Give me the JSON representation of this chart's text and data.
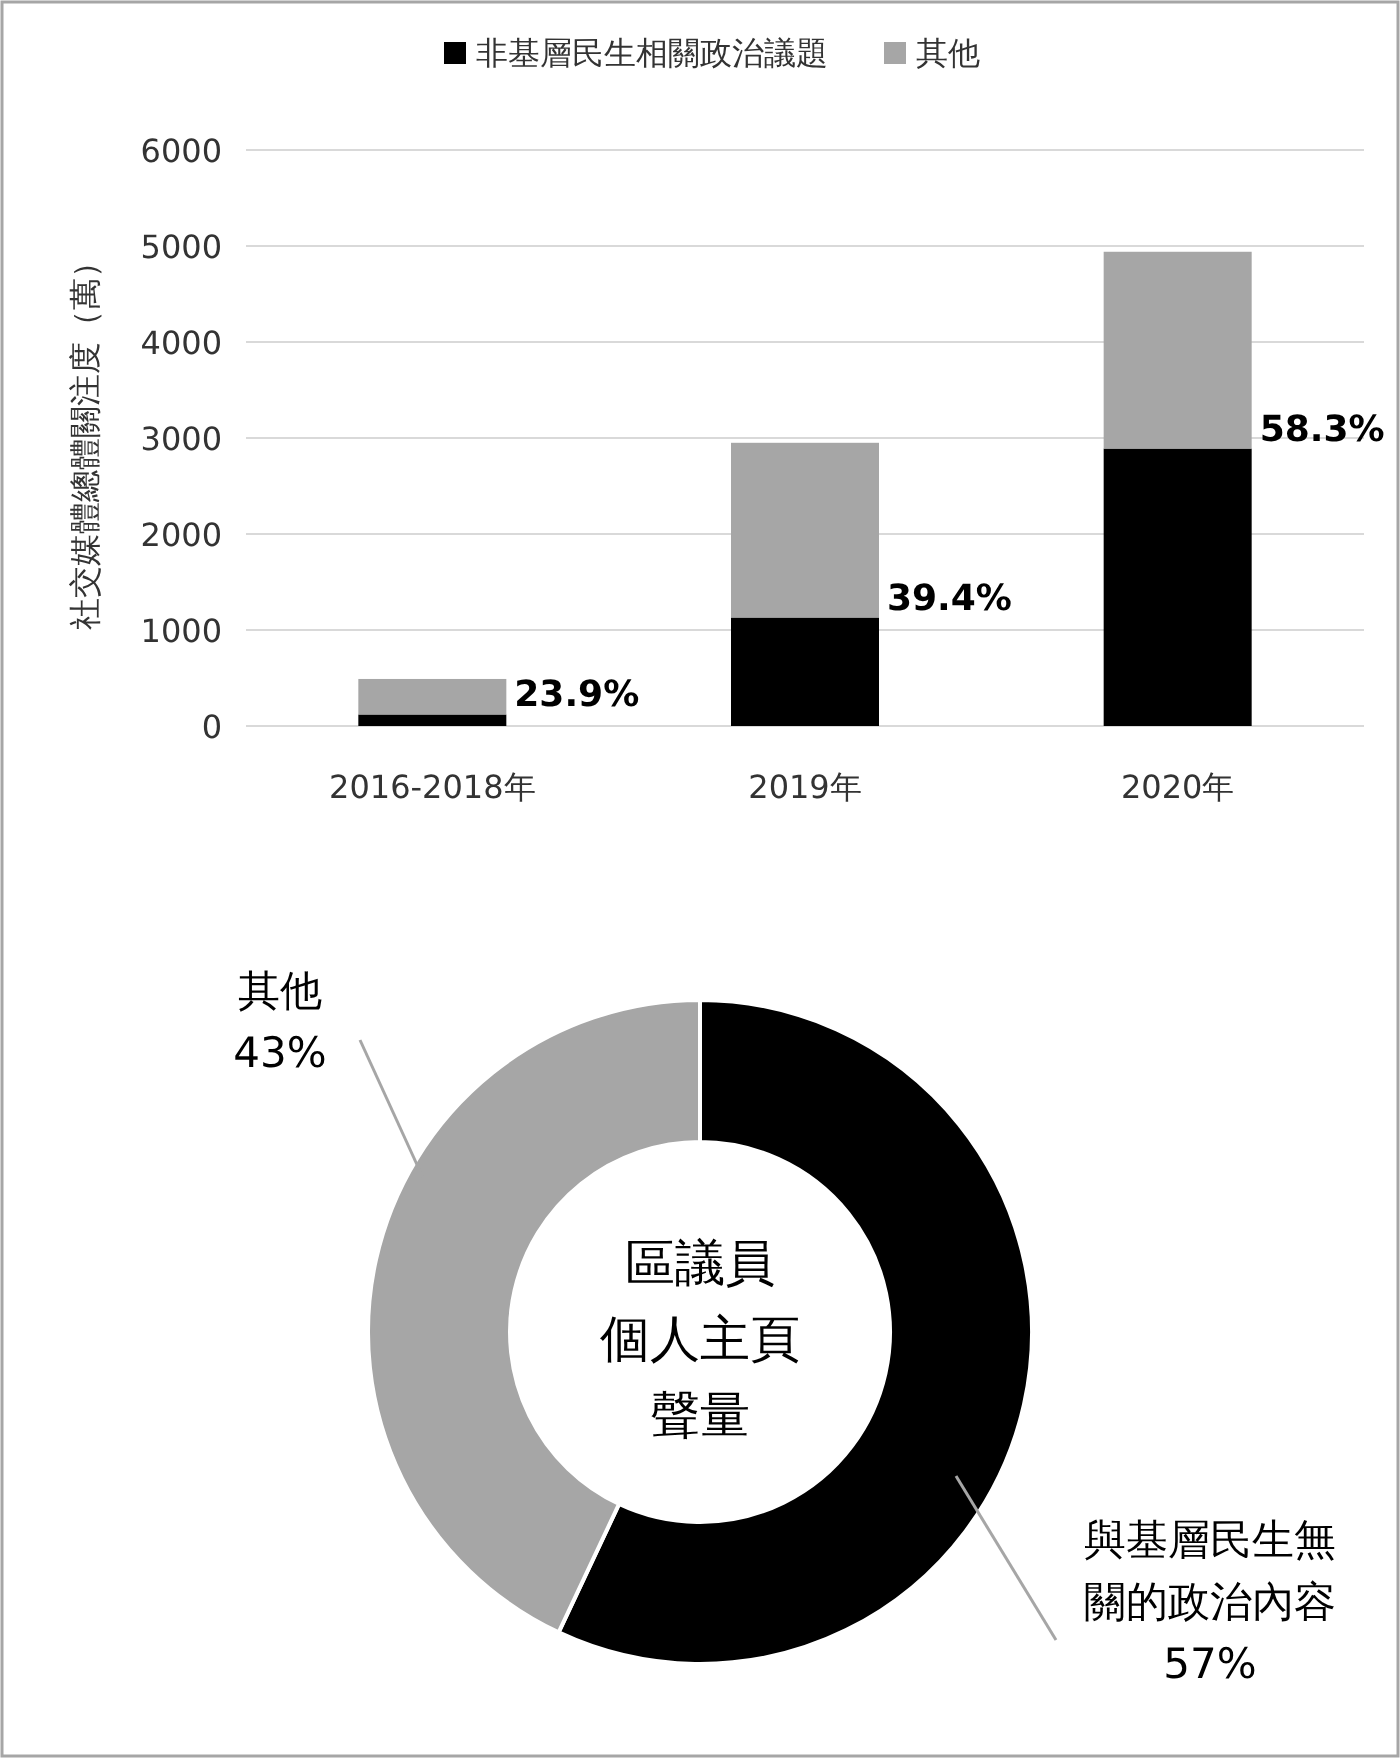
{
  "chart_data": [
    {
      "type": "bar",
      "stacked": true,
      "ylabel": "社交媒體總體關注度（萬）",
      "categories": [
        "2016-2018年",
        "2019年",
        "2020年"
      ],
      "series": [
        {
          "name": "非基層民生相關政治議題",
          "color": "#000000",
          "values": [
            120,
            1130,
            2890
          ]
        },
        {
          "name": "其他",
          "color": "#a6a6a6",
          "values": [
            370,
            1820,
            2050
          ]
        }
      ],
      "ylim": [
        0,
        6000
      ],
      "yticks": [
        0,
        1000,
        2000,
        3000,
        4000,
        5000,
        6000
      ],
      "grid": "y",
      "legend": "top",
      "annotations": [
        {
          "text": "23.9%",
          "x": "2016-2018年",
          "y": 120
        },
        {
          "text": "39.4%",
          "x": "2019年",
          "y": 1130
        },
        {
          "text": "58.3%",
          "x": "2020年",
          "y": 2890
        }
      ]
    },
    {
      "type": "donut",
      "title": "區議員個人主頁聲量",
      "categories": [
        "與基層民生無關的政治內容",
        "其他"
      ],
      "values": [
        57,
        43
      ],
      "colors": [
        "#000000",
        "#a6a6a6"
      ],
      "value_labels": [
        "57%",
        "43%"
      ]
    }
  ]
}
